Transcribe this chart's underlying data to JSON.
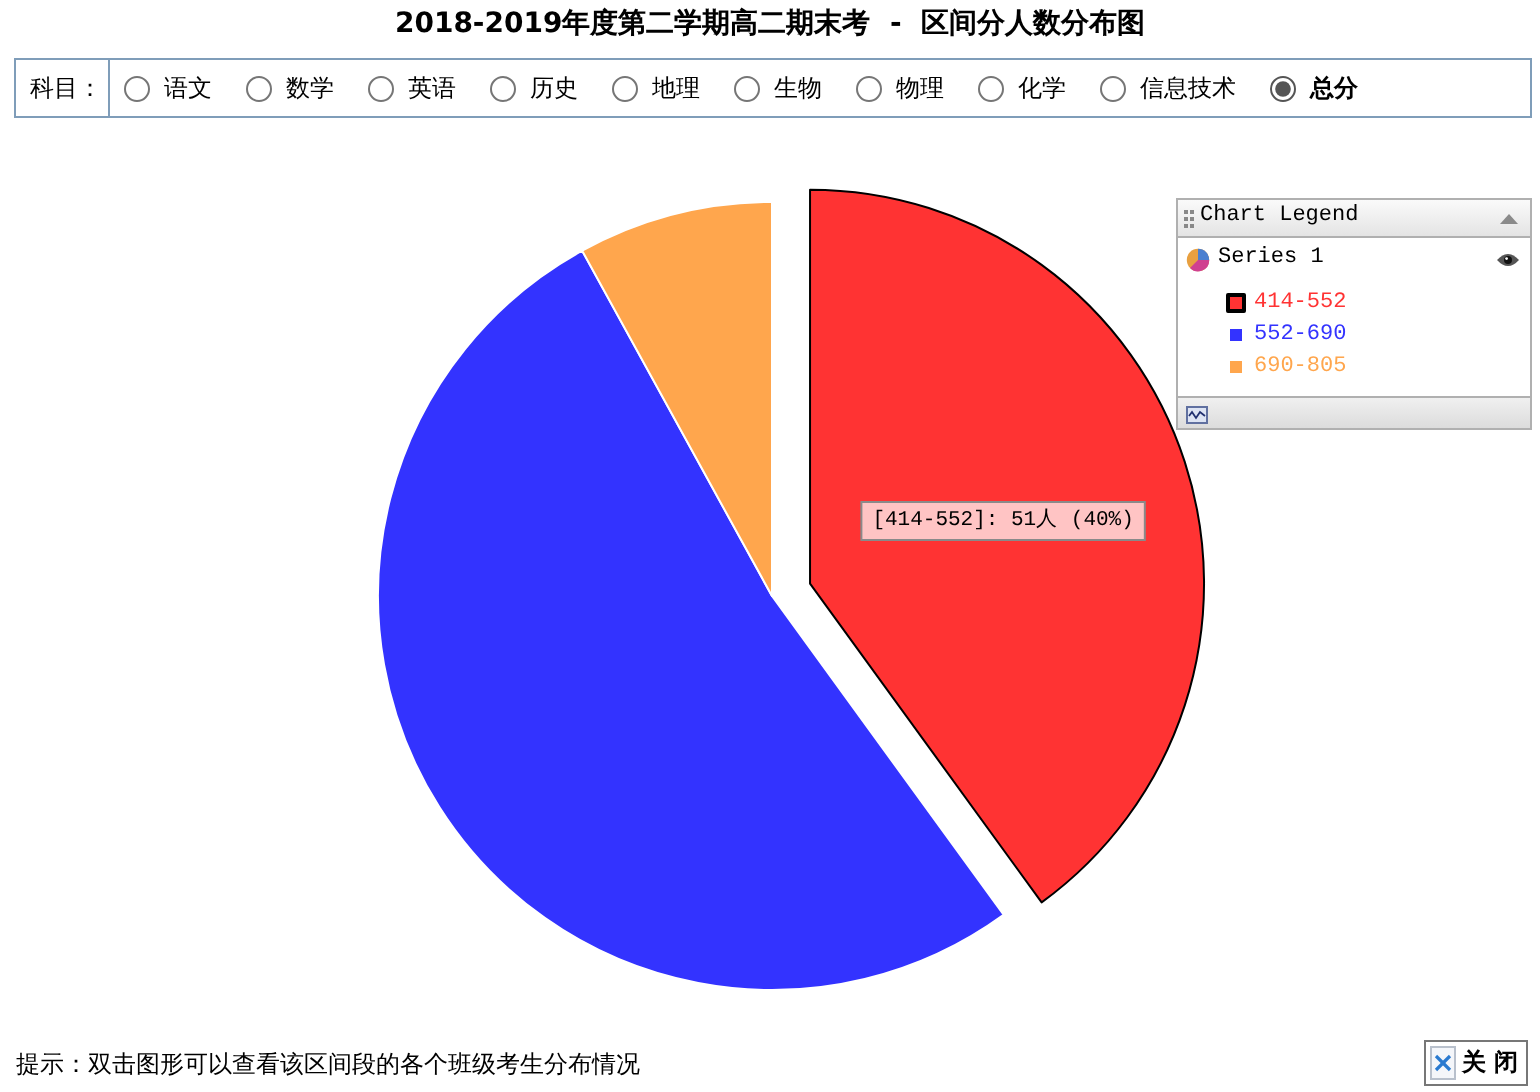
{
  "chart_data": {
    "type": "pie",
    "title": "2018-2019年度第二学期高二期末考  -  区间分人数分布图",
    "categories": [
      "414-552",
      "552-690",
      "690-805"
    ],
    "colors": [
      "#ff3333",
      "#3333ff",
      "#ffa64d"
    ],
    "series": [
      {
        "name": "Series 1",
        "values": [
          40,
          52,
          8
        ],
        "value_labels": [
          "[414-552]: 51人 (40%)",
          null,
          null
        ]
      }
    ],
    "legend": "top right",
    "legend_title": "Chart Legend",
    "annotations": [
      "科目：",
      "语文",
      "数学",
      "英语",
      "历史",
      "地理",
      "生物",
      "物理",
      "化学",
      "信息技术",
      "总分",
      "提示：双击图形可以查看该区间段的各个班级考生分布情况",
      "关 闭"
    ]
  }
}
